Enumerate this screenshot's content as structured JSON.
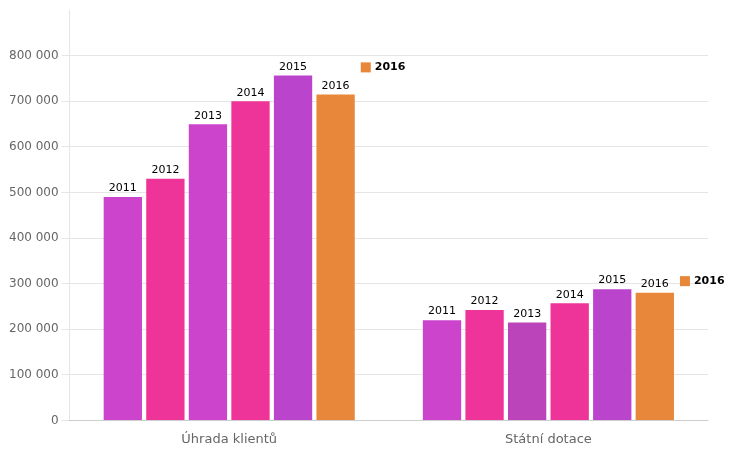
{
  "chart_data": {
    "type": "bar",
    "categories": [
      "Úhrada klientů",
      "Státní dotace"
    ],
    "series": [
      {
        "name": "2011",
        "colors": [
          "#cc44cc",
          "#cc44cc"
        ],
        "values": [
          490000,
          220000
        ]
      },
      {
        "name": "2012",
        "colors": [
          "#ee3399",
          "#ee3399"
        ],
        "values": [
          530000,
          242000
        ]
      },
      {
        "name": "2013",
        "colors": [
          "#cc44cc",
          "#bb44bb"
        ],
        "values": [
          650000,
          215000
        ]
      },
      {
        "name": "2014",
        "colors": [
          "#ee3399",
          "#ee3399"
        ],
        "values": [
          700000,
          257000
        ]
      },
      {
        "name": "2015",
        "colors": [
          "#bb44cc",
          "#bb44cc"
        ],
        "values": [
          757000,
          288000
        ]
      },
      {
        "name": "2016",
        "colors": [
          "#e8873a",
          "#e8873a"
        ],
        "values": [
          715000,
          280000
        ]
      }
    ],
    "ylim": [
      0,
      900000
    ],
    "yticks": [
      0,
      {
        "value": 100000,
        "label": "100 000"
      },
      {
        "value": 200000,
        "label": "200 000"
      },
      {
        "value": 300000,
        "label": "300 000"
      },
      {
        "value": 400000,
        "label": "400 000"
      },
      {
        "value": 500000,
        "label": "500 000"
      },
      {
        "value": 600000,
        "label": "600 000"
      },
      {
        "value": 700000,
        "label": "700 000"
      },
      {
        "value": 800000,
        "label": "800 000"
      }
    ],
    "grid": true,
    "annotations": [
      {
        "text": "2016",
        "category": "Úhrada klientů"
      },
      {
        "text": "2016",
        "category": "Státní dotace"
      }
    ]
  }
}
